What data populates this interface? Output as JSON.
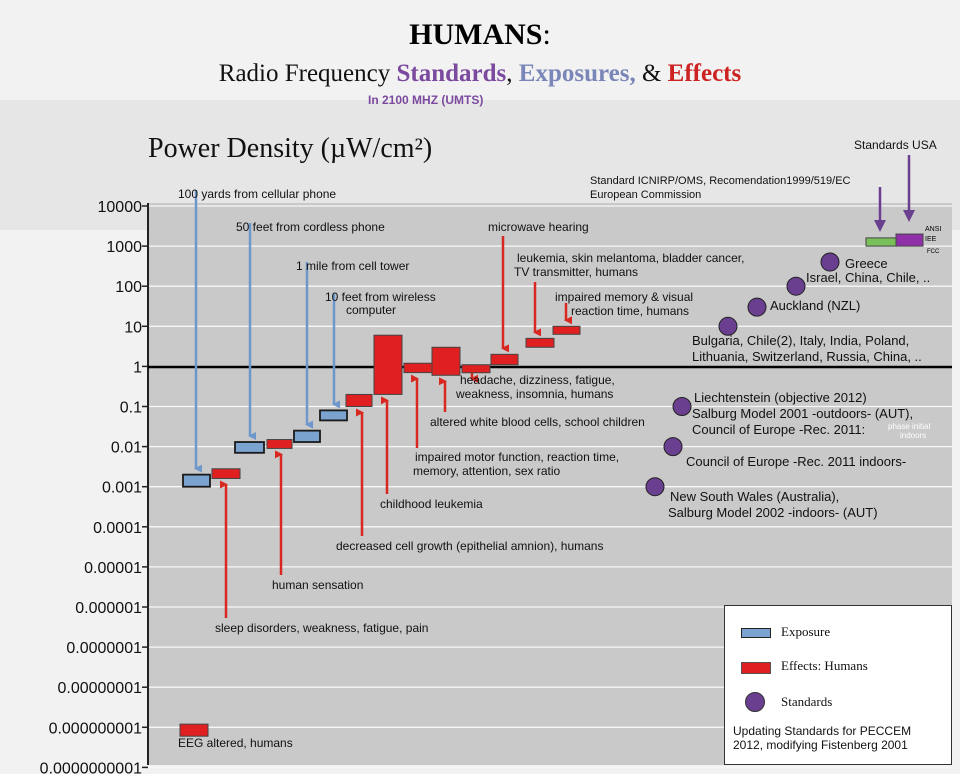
{
  "title": {
    "main": "HUMANS",
    "colon": ":"
  },
  "subtitle": {
    "prefix": "Radio Frequency",
    "standards": "Standards",
    "comma1": ",",
    "exposures": "Exposures,",
    "amp": "&",
    "effects": "Effects",
    "note": "In 2100 MHZ (UMTS)"
  },
  "y_title": "Power Density (µW/cm²)",
  "colors": {
    "exposure": "#7ba3d0",
    "effect": "#e02020",
    "standard": "#6a3f8f",
    "arrow_blue": "#6e98cc",
    "arrow_red": "#d8281f",
    "standard_green": "#7ac05a",
    "standard_purple": "#9030a8"
  },
  "chart_data": {
    "type": "scatter",
    "title": "Power Density (µW/cm²)",
    "y_scale": "log",
    "ylim": [
      1e-10,
      10000
    ],
    "y_ticks": [
      "10000",
      "1000",
      "100",
      "10",
      "1",
      "0.1",
      "0.01",
      "0.001",
      "0.0001",
      "0.00001",
      "0.000001",
      "0.0000001",
      "0.00000001",
      "0.000000001",
      "0.0000000001"
    ],
    "reference_line": 1,
    "exposures": [
      {
        "label": "100 yards from cellular phone",
        "low": 0.001,
        "high": 0.002
      },
      {
        "label": "50 feet from cordless phone",
        "low": 0.007,
        "high": 0.013
      },
      {
        "label": "1 mile from cell tower",
        "low": 0.013,
        "high": 0.025
      },
      {
        "label": "10 feet from wireless computer",
        "low": 0.045,
        "high": 0.08
      }
    ],
    "effects": [
      {
        "label": "EEG altered, humans",
        "low": 6e-10,
        "high": 1.2e-09
      },
      {
        "label": "sleep disorders, weakness, fatigue, pain",
        "low": 0.0016,
        "high": 0.0028
      },
      {
        "label": "human sensation",
        "low": 0.009,
        "high": 0.015
      },
      {
        "label": "decreased cell growth (epithelial amnion), humans",
        "low": 0.1,
        "high": 0.2
      },
      {
        "label": "childhood leukemia",
        "low": 0.2,
        "high": 6
      },
      {
        "label": "impaired motor function, reaction time, memory, attention, sex ratio",
        "low": 0.7,
        "high": 1.2
      },
      {
        "label": "altered white blood cells, school children",
        "low": 0.6,
        "high": 3
      },
      {
        "label": "headache, dizziness, fatigue, weakness, insomnia, humans",
        "low": 0.7,
        "high": 1.1
      },
      {
        "label": "microwave hearing",
        "low": 1.1,
        "high": 2
      },
      {
        "label": "leukemia, skin melantoma, bladder cancer, TV transmitter, humans",
        "low": 3,
        "high": 5
      },
      {
        "label": "impaired memory & visual reaction time, humans",
        "low": 6.5,
        "high": 10
      }
    ],
    "standards": [
      {
        "label": "New South Wales (Australia), Salburg Model 2002 -indoors- (AUT)",
        "value": 0.001
      },
      {
        "label": "Council of Europe -Rec. 2011 indoors-",
        "value": 0.01
      },
      {
        "label": "Liechtenstein (objective 2012) Salburg Model 2001 -outdoors- (AUT), Council of Europe -Rec. 2011: phase initial indoors",
        "value": 0.1
      },
      {
        "label": "Bulgaria, Chile(2), Italy, India, Poland, Lithuania, Switzerland, Russia, China, ..",
        "value": 10
      },
      {
        "label": "Auckland (NZL)",
        "value": 30
      },
      {
        "label": "Israel, China, Chile, ..",
        "value": 100
      },
      {
        "label": "Greece",
        "value": 400
      },
      {
        "label": "Standard ICNIRP/OMS, Recomendation1999/519/EC European Commission",
        "low": 1000,
        "high": 1600
      },
      {
        "label": "Standards USA (ANSI, IEE, FCC)",
        "low": 1000,
        "high": 2000
      }
    ]
  },
  "labels": {
    "exp1": "100 yards from cellular phone",
    "exp2": "50 feet from cordless phone",
    "exp3": "1 mile from cell tower",
    "exp4a": "10 feet from wireless",
    "exp4b": "computer",
    "eff_eeg": "EEG altered, humans",
    "eff_sleep": "sleep disorders, weakness, fatigue, pain",
    "eff_sensation": "human sensation",
    "eff_cell": "decreased cell growth (epithelial amnion), humans",
    "eff_leuk": "childhood leukemia",
    "eff_motor1": "impaired motor function, reaction time,",
    "eff_motor2": "memory, attention, sex ratio",
    "eff_wbc": "altered white blood cells, school children",
    "eff_head1": "headache, dizziness, fatigue,",
    "eff_head2": "weakness, insomnia, humans",
    "eff_micro": "microwave hearing",
    "eff_cancer1": "leukemia, skin melantoma, bladder cancer,",
    "eff_cancer2": "TV transmitter, humans",
    "eff_mem1": "impaired memory & visual",
    "eff_mem2": "reaction time, humans",
    "std_usa": "Standards USA",
    "std_icnirp1": "Standard ICNIRP/OMS, Recomendation1999/519/EC",
    "std_icnirp2": "European Commission",
    "ansi": "ANSI",
    "iee": "IEE",
    "fcc": "FCC",
    "greece": "Greece",
    "israel": "Israel, China, Chile, ..",
    "auckland": "Auckland (NZL)",
    "bulgaria1": "Bulgaria, Chile(2), Italy, India, Poland,",
    "bulgaria2": "Lithuania, Switzerland, Russia, China, ..",
    "liech1": "Liechtenstein (objective 2012)",
    "liech2": "Salburg Model 2001 -outdoors- (AUT),",
    "liech3": "Council of Europe -Rec. 2011:",
    "phase1": "phase initial",
    "phase2": "indoors",
    "coe": "Council of Europe -Rec. 2011 indoors-",
    "nsw1": "New South Wales (Australia),",
    "nsw2": "Salburg Model 2002 -indoors- (AUT)"
  },
  "legend": {
    "exposure": "Exposure",
    "effects": "Effects:  Humans",
    "standards": "Standards",
    "foot1": "Updating Standards for PECCEM",
    "foot2": "2012, modifying Fistenberg 2001"
  }
}
